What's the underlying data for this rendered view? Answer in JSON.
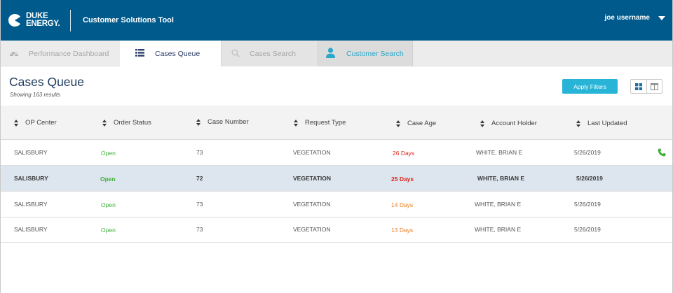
{
  "header": {
    "logo_line1": "DUKE",
    "logo_line2": "ENERGY.",
    "app_title": "Customer Solutions Tool",
    "username": "joe username"
  },
  "tabs": [
    {
      "label": "Performance Dashboard",
      "icon": "gauge-icon"
    },
    {
      "label": "Cases Queue",
      "icon": "list-icon"
    },
    {
      "label": "Cases Search",
      "icon": "search-icon"
    },
    {
      "label": "Customer Search",
      "icon": "person-icon"
    }
  ],
  "page": {
    "title": "Cases Queue",
    "result_count": "Showing 163 results",
    "apply_filters": "Apply Filters"
  },
  "table": {
    "columns": [
      "OP Center",
      "Order Status",
      "Case Number",
      "Request Type",
      "Case Age",
      "Account Holder",
      "Last Updated"
    ],
    "rows": [
      {
        "op_center": "SALISBURY",
        "status": "Open",
        "case_number": "73",
        "request_type": "VEGETATION",
        "case_age": "26 Days",
        "account_holder": "WHITE, BRIAN E",
        "last_updated": "5/26/2019"
      },
      {
        "op_center": "SALISBURY",
        "status": "Open",
        "case_number": "72",
        "request_type": "VEGETATION",
        "case_age": "25 Days",
        "account_holder": "WHITE, BRIAN E",
        "last_updated": "5/26/2019"
      },
      {
        "op_center": "SALISBURY",
        "status": "Open",
        "case_number": "73",
        "request_type": "VEGETATION",
        "case_age": "14 Days",
        "account_holder": "WHITE, BRIAN E",
        "last_updated": "5/26/2019"
      },
      {
        "op_center": "SALISBURY",
        "status": "Open",
        "case_number": "73",
        "request_type": "VEGETATION",
        "case_age": "13 Days",
        "account_holder": "WHITE, BRIAN E",
        "last_updated": "5/26/2019"
      }
    ]
  },
  "colors": {
    "brand_blue": "#005a8c",
    "accent_cyan": "#27b4d6",
    "open_green": "#3fae3a",
    "age_red": "#d9261c",
    "age_orange": "#ef7c1e"
  }
}
